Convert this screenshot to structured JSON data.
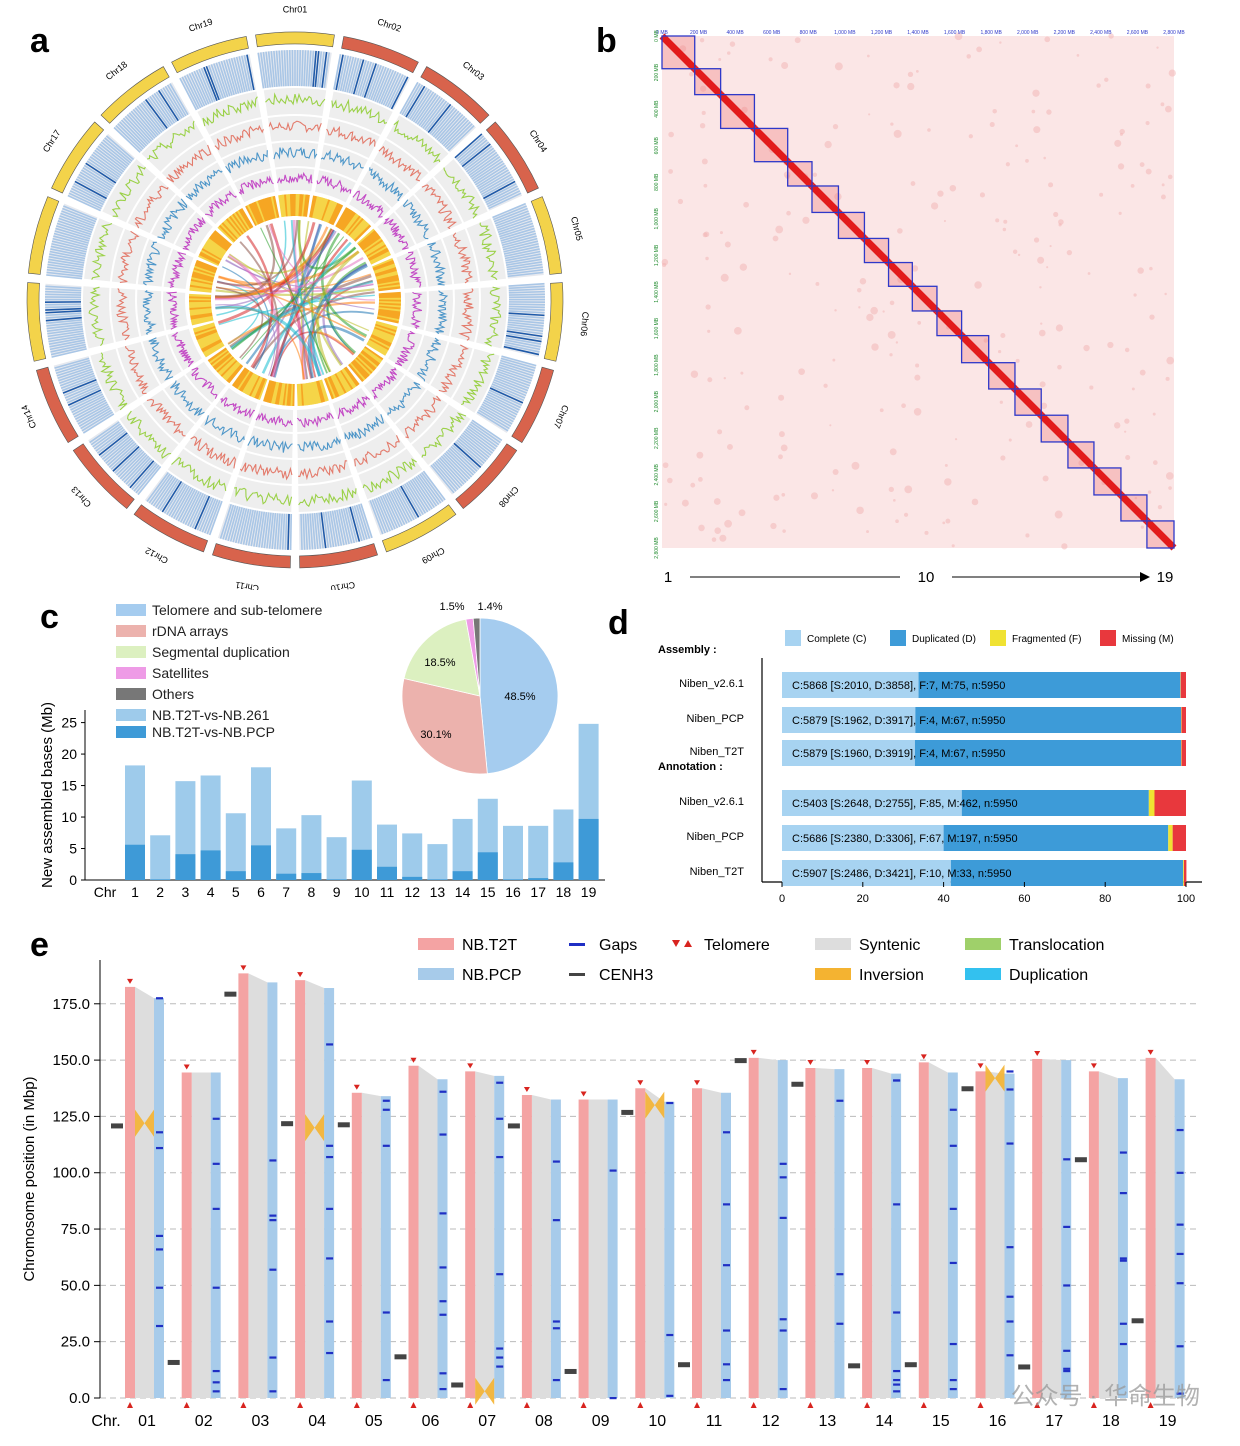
{
  "panels": {
    "a": "a",
    "b": "b",
    "c": "c",
    "d": "d",
    "e": "e"
  },
  "panel_a": {
    "chromosomes": [
      "Chr01",
      "Chr02",
      "Chr03",
      "Chr04",
      "Chr05",
      "Chr06",
      "Chr07",
      "Chr08",
      "Chr09",
      "Chr10",
      "Chr11",
      "Chr12",
      "Chr13",
      "Chr14",
      "Chr15",
      "Chr16",
      "Chr17",
      "Chr18",
      "Chr19"
    ],
    "colors": {
      "yellow": "#f3d34a",
      "red": "#d8634c",
      "heat": "#8fb5dc",
      "green": "#9bd149",
      "salmon": "#e37b6c",
      "blue": "#4f97c9",
      "magenta": "#c44cc6"
    }
  },
  "panel_b": {
    "axis_start": "1",
    "axis_mid": "10",
    "axis_end": "19",
    "top_ticks": [
      "0 MB",
      "200 MB",
      "400 MB",
      "600 MB",
      "800 MB",
      "1,000 MB",
      "1,200 MB",
      "1,400 MB",
      "1,600 MB",
      "1,800 MB",
      "2,000 MB",
      "2,200 MB",
      "2,400 MB",
      "2,600 MB",
      "2,800 MB"
    ],
    "left_ticks": [
      "0 MB",
      "200 MB",
      "400 MB",
      "600 MB",
      "800 MB",
      "1,000 MB",
      "1,200 MB",
      "1,400 MB",
      "1,600 MB",
      "1,800 MB",
      "2,000 MB",
      "2,200 MB",
      "2,400 MB",
      "2,600 MB",
      "2,800 MB"
    ]
  },
  "chart_data": [
    {
      "type": "bar",
      "panel": "c",
      "ylabel": "New assembled bases (Mb)",
      "xprefix": "Chr",
      "categories": [
        "1",
        "2",
        "3",
        "4",
        "5",
        "6",
        "7",
        "8",
        "9",
        "10",
        "11",
        "12",
        "13",
        "14",
        "15",
        "16",
        "17",
        "18",
        "19"
      ],
      "ylim": [
        0,
        27
      ],
      "yticks": [
        "0",
        "5",
        "10",
        "15",
        "20",
        "25"
      ],
      "series": [
        {
          "name": "NB.T2T-vs-NB.261",
          "color": "#9ecbeb",
          "values": [
            18.2,
            7.1,
            15.7,
            16.6,
            10.6,
            17.9,
            8.2,
            10.3,
            6.8,
            15.8,
            8.8,
            7.4,
            5.7,
            9.7,
            12.9,
            8.6,
            8.6,
            11.2,
            24.8
          ]
        },
        {
          "name": "NB.T2T-vs-NB.PCP",
          "color": "#3e9ad7",
          "values": [
            5.6,
            0.1,
            4.1,
            4.7,
            1.4,
            5.5,
            1.0,
            1.1,
            0.1,
            4.8,
            2.1,
            0.5,
            0.1,
            1.4,
            4.4,
            0.1,
            0.3,
            2.8,
            9.7
          ]
        }
      ],
      "legend": [
        {
          "label": "Telomere and sub-telomere",
          "color": "#a5ccef"
        },
        {
          "label": "rDNA arrays",
          "color": "#ecb2ad"
        },
        {
          "label": "Segmental duplication",
          "color": "#dcf0c0"
        },
        {
          "label": "Satellites",
          "color": "#ee9be6"
        },
        {
          "label": "Others",
          "color": "#777777"
        },
        {
          "label": "NB.T2T-vs-NB.261",
          "color": "#9ecbeb"
        },
        {
          "label": "NB.T2T-vs-NB.PCP",
          "color": "#3e9ad7"
        }
      ]
    },
    {
      "type": "pie",
      "panel": "c",
      "slices": [
        {
          "label": "48.5%",
          "value": 48.5,
          "color": "#a5ccef"
        },
        {
          "label": "30.1%",
          "value": 30.1,
          "color": "#ecb2ad"
        },
        {
          "label": "18.5%",
          "value": 18.5,
          "color": "#dcf0c0"
        },
        {
          "label": "1.5%",
          "value": 1.5,
          "color": "#ee9be6"
        },
        {
          "label": "1.4%",
          "value": 1.4,
          "color": "#777777"
        }
      ]
    },
    {
      "type": "bar",
      "panel": "d",
      "stacked": true,
      "horizontal": true,
      "xlim": [
        0,
        100
      ],
      "xticks": [
        "0",
        "20",
        "40",
        "60",
        "80",
        "100"
      ],
      "legend": [
        {
          "label": "Complete (C)",
          "color": "#a7d3f1"
        },
        {
          "label": "Duplicated (D)",
          "color": "#3d9bd8"
        },
        {
          "label": "Fragmented (F)",
          "color": "#f0e232"
        },
        {
          "label": "Missing (M)",
          "color": "#e8383d"
        }
      ],
      "groups": [
        {
          "title": "Assembly :",
          "rows": [
            {
              "name": "Niben_v2.6.1",
              "text": "C:5868 [S:2010, D:3858], F:7, M:75, n:5950",
              "S": 33.8,
              "D": 64.8,
              "F": 0.1,
              "M": 1.3
            },
            {
              "name": "Niben_PCP",
              "text": "C:5879 [S:1962, D:3917], F:4, M:67, n:5950",
              "S": 33.0,
              "D": 65.8,
              "F": 0.1,
              "M": 1.1
            },
            {
              "name": "Niben_T2T",
              "text": "C:5879 [S:1960, D:3919], F:4, M:67, n:5950",
              "S": 32.9,
              "D": 65.9,
              "F": 0.1,
              "M": 1.1
            }
          ]
        },
        {
          "title": "Annotation :",
          "rows": [
            {
              "name": "Niben_v2.6.1",
              "text": "C:5403 [S:2648, D:2755], F:85, M:462, n:5950",
              "S": 44.5,
              "D": 46.3,
              "F": 1.4,
              "M": 7.8
            },
            {
              "name": "Niben_PCP",
              "text": "C:5686 [S:2380, D:3306], F:67, M:197, n:5950",
              "S": 40.0,
              "D": 55.6,
              "F": 1.1,
              "M": 3.3
            },
            {
              "name": "Niben_T2T",
              "text": "C:5907 [S:2486, D:3421], F:10, M:33, n:5950",
              "S": 41.8,
              "D": 57.5,
              "F": 0.2,
              "M": 0.6
            }
          ]
        }
      ]
    },
    {
      "type": "bar",
      "panel": "e",
      "ylabel": "Chromosome position (in Mbp)",
      "xprefix": "Chr.",
      "ylim": [
        0,
        190
      ],
      "yticks": [
        "0.0",
        "25.0",
        "50.0",
        "75.0",
        "100.0",
        "125.0",
        "150.0",
        "175.0"
      ],
      "categories": [
        "01",
        "02",
        "03",
        "04",
        "05",
        "06",
        "07",
        "08",
        "09",
        "10",
        "11",
        "12",
        "13",
        "14",
        "15",
        "16",
        "17",
        "18",
        "19"
      ],
      "series": [
        {
          "name": "NB.T2T",
          "color": "#f4a3a3",
          "values": [
            182.5,
            144.5,
            188.5,
            185.5,
            135.5,
            147.5,
            145,
            134.5,
            132.5,
            137.5,
            137.5,
            151,
            146.5,
            146.5,
            149,
            145,
            150.5,
            145,
            151
          ]
        },
        {
          "name": "NB.PCP",
          "color": "#a7cbea",
          "values": [
            177.5,
            144.5,
            184.5,
            182,
            134,
            141.5,
            143,
            132.5,
            132.5,
            131.5,
            135.5,
            150,
            146,
            144,
            144.5,
            144,
            150,
            142,
            141.5
          ]
        }
      ],
      "centromeres": [
        121,
        16,
        179.5,
        122,
        121.5,
        18.5,
        6,
        121,
        12,
        127,
        15,
        150,
        139.5,
        14.5,
        15,
        137.5,
        14,
        106,
        34.5
      ],
      "gaps": [
        [
          177.5,
          118,
          111,
          72,
          66,
          49,
          32
        ],
        [
          124,
          104,
          84,
          49,
          12,
          7,
          3
        ],
        [
          105.5,
          81,
          79,
          57,
          18,
          3
        ],
        [
          157,
          112,
          107,
          84,
          62,
          34,
          20
        ],
        [
          132,
          128,
          112,
          38,
          8
        ],
        [
          136,
          117,
          82,
          58,
          43,
          37,
          11,
          4
        ],
        [
          140,
          124,
          107,
          55,
          22,
          18,
          14
        ],
        [
          105,
          79,
          34,
          31,
          8
        ],
        [
          101,
          0
        ],
        [
          131,
          28,
          1
        ],
        [
          118,
          86,
          59,
          30,
          15,
          8
        ],
        [
          104,
          98,
          80,
          35,
          30,
          4
        ],
        [
          132,
          55,
          33
        ],
        [
          141,
          141,
          86,
          38,
          12,
          8,
          6,
          3
        ],
        [
          128,
          112,
          84,
          60,
          24,
          8,
          4
        ],
        [
          145,
          137,
          113,
          67,
          45,
          34,
          19
        ],
        [
          106,
          76,
          50,
          21,
          13,
          12
        ],
        [
          109,
          91,
          62,
          61,
          33,
          24
        ],
        [
          119,
          100,
          77,
          64,
          51,
          23,
          2
        ]
      ],
      "legend": [
        {
          "label": "NB.T2T",
          "color": "#f4a3a3"
        },
        {
          "label": "NB.PCP",
          "color": "#a7cbea"
        },
        {
          "label": "Gaps",
          "color": "#1f2fc4"
        },
        {
          "label": "CENH3",
          "color": "#444444"
        },
        {
          "label": "Telomere",
          "color": "#d8241f"
        },
        {
          "label": "Syntenic",
          "color": "#dddddd"
        },
        {
          "label": "Inversion",
          "color": "#f4b331"
        },
        {
          "label": "Translocation",
          "color": "#9fd06a"
        },
        {
          "label": "Duplication",
          "color": "#33c1ef"
        }
      ]
    }
  ],
  "watermark": "公众号 · 华命生物"
}
